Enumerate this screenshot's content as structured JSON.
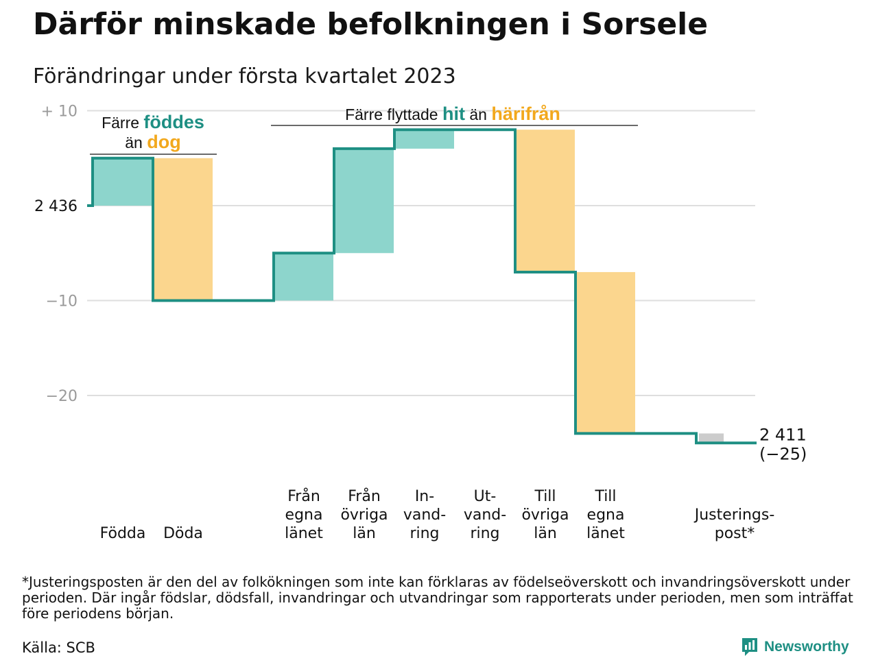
{
  "title": "Därför minskade befolkningen i Sorsele",
  "subtitle": "Förändringar under första kvartalet 2023",
  "footnote": "*Justeringsposten är den del av folkökningen som inte kan förklaras av födelseöverskott och invandringsöverskott under perioden. Där ingår födslar, dödsfall, invandringar och utvandringar som rapporterats under perioden, men som inträffat före periodens början.",
  "source": "Källa: SCB",
  "brand": "Newsworthy",
  "colors": {
    "increase": "#8dd5cc",
    "decrease": "#fbd68e",
    "adjustment": "#cccccc",
    "line": "#1e8f83",
    "hit": "#1e8f83",
    "harifran": "#f2a81d",
    "grid": "#dedede",
    "tick": "#9a9a9a"
  },
  "chart_data": {
    "type": "waterfall",
    "start_value": "2 436",
    "end_value": "2 411",
    "end_change": "(−25)",
    "yticks": [
      {
        "value": 10,
        "label": "+ 10"
      },
      {
        "value": -10,
        "label": "−10"
      },
      {
        "value": -20,
        "label": "−20"
      }
    ],
    "ylim": [
      -25,
      10
    ],
    "steps": [
      {
        "label": [
          "Födda"
        ],
        "change": 5,
        "kind": "increase"
      },
      {
        "label": [
          "Döda"
        ],
        "change": -15,
        "kind": "decrease"
      },
      {
        "label": [],
        "change": 0,
        "kind": "gap"
      },
      {
        "label": [
          "Från",
          "egna",
          "länet"
        ],
        "change": 5,
        "kind": "increase"
      },
      {
        "label": [
          "Från",
          "övriga",
          "län"
        ],
        "change": 11,
        "kind": "increase"
      },
      {
        "label": [
          "In-",
          "vand-",
          "ring"
        ],
        "change": 2,
        "kind": "increase"
      },
      {
        "label": [
          "Ut-",
          "vand-",
          "ring"
        ],
        "change": 0,
        "kind": "decrease"
      },
      {
        "label": [
          "Till",
          "övriga",
          "län"
        ],
        "change": -15,
        "kind": "decrease"
      },
      {
        "label": [
          "Till",
          "egna",
          "länet"
        ],
        "change": -17,
        "kind": "decrease"
      },
      {
        "label": [],
        "change": 0,
        "kind": "gap"
      },
      {
        "label": [
          "Justerings-",
          "post*"
        ],
        "change": -1,
        "kind": "adjustment"
      }
    ],
    "annotations": [
      {
        "id": "births",
        "lines": [
          [
            {
              "text": "Färre "
            },
            {
              "text": "föddes",
              "color_key": "hit",
              "bold": true
            }
          ],
          [
            {
              "text": "än "
            },
            {
              "text": "dog",
              "color_key": "harifran",
              "bold": true
            }
          ]
        ]
      },
      {
        "id": "migration",
        "lines": [
          [
            {
              "text": "Färre flyttade "
            },
            {
              "text": "hit",
              "color_key": "hit",
              "bold": true
            },
            {
              "text": " än "
            },
            {
              "text": "härifrån",
              "color_key": "harifran",
              "bold": true
            }
          ]
        ]
      }
    ]
  }
}
